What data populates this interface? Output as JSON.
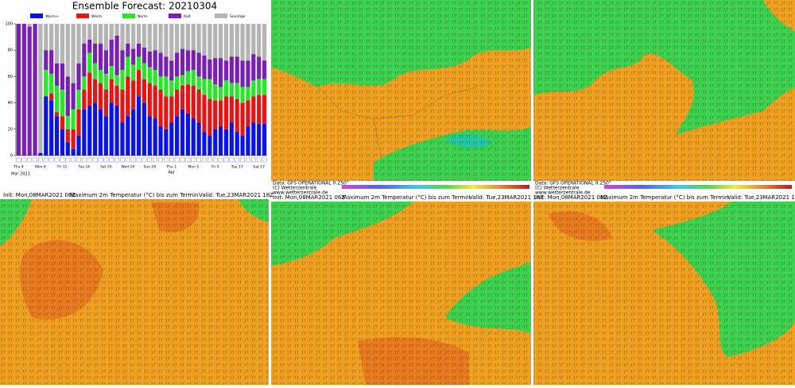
{
  "chart_data": {
    "type": "bar",
    "stacked": true,
    "title": "Ensemble Forecast: 20210304",
    "categories": [
      "Thu 4",
      null,
      null,
      null,
      "Mon 8",
      null,
      null,
      null,
      "Fri 12",
      null,
      null,
      null,
      "Tue 16",
      null,
      null,
      null,
      "Sat 20",
      null,
      null,
      null,
      "Wed 24",
      null,
      null,
      null,
      "Sun 28",
      null,
      null,
      null,
      "Thu 1",
      null,
      null,
      null,
      "Mon 5",
      null,
      null,
      null,
      "Fri 9",
      null,
      null,
      null,
      "Tue 13",
      null,
      null,
      null,
      "Sat 17",
      null
    ],
    "month_labels": [
      "Mar 2021",
      "Apr"
    ],
    "series": [
      {
        "name": "Warm+",
        "color": "#0a14e6",
        "values": [
          0,
          0,
          0,
          0,
          2,
          45,
          42,
          30,
          20,
          10,
          5,
          15,
          35,
          38,
          40,
          35,
          30,
          40,
          38,
          25,
          30,
          35,
          45,
          40,
          30,
          28,
          22,
          20,
          25,
          30,
          35,
          32,
          28,
          25,
          18,
          15,
          20,
          22,
          20,
          25,
          18,
          15,
          22,
          25,
          24,
          24
        ]
      },
      {
        "name": "Warm",
        "color": "#e61414",
        "values": [
          0,
          0,
          0,
          0,
          0,
          0,
          5,
          3,
          10,
          10,
          15,
          20,
          15,
          25,
          18,
          20,
          20,
          18,
          15,
          25,
          30,
          22,
          20,
          18,
          25,
          25,
          28,
          25,
          20,
          20,
          18,
          22,
          25,
          25,
          28,
          28,
          22,
          20,
          25,
          20,
          25,
          25,
          20,
          20,
          22,
          22
        ]
      },
      {
        "name": "Norm",
        "color": "#28e628",
        "values": [
          0,
          0,
          0,
          0,
          0,
          20,
          15,
          20,
          20,
          10,
          15,
          15,
          10,
          15,
          12,
          10,
          12,
          10,
          8,
          15,
          15,
          12,
          10,
          12,
          12,
          12,
          10,
          15,
          12,
          10,
          8,
          10,
          12,
          10,
          12,
          15,
          12,
          10,
          12,
          10,
          12,
          12,
          10,
          12,
          12,
          12
        ]
      },
      {
        "name": "Kalt",
        "color": "#7a1fb4",
        "values": [
          100,
          100,
          98,
          100,
          0,
          15,
          18,
          17,
          20,
          30,
          20,
          20,
          25,
          10,
          15,
          20,
          18,
          20,
          30,
          15,
          10,
          12,
          10,
          12,
          12,
          15,
          18,
          15,
          15,
          18,
          20,
          16,
          15,
          18,
          18,
          15,
          20,
          22,
          15,
          20,
          20,
          20,
          20,
          20,
          17,
          14
        ]
      },
      {
        "name": "Sonstige",
        "color": "#b4b4b4",
        "values": [
          0,
          0,
          2,
          0,
          98,
          20,
          20,
          30,
          30,
          40,
          45,
          30,
          15,
          12,
          15,
          15,
          20,
          12,
          9,
          20,
          15,
          19,
          15,
          18,
          21,
          20,
          22,
          25,
          28,
          22,
          19,
          20,
          20,
          22,
          24,
          27,
          26,
          26,
          28,
          25,
          25,
          28,
          28,
          23,
          25,
          28
        ]
      }
    ],
    "ylim": [
      0,
      100
    ],
    "yticks": [
      0,
      20,
      40,
      60,
      80,
      100
    ],
    "grid": false
  },
  "maps": {
    "header": {
      "init": "Init: Mon,08MAR2021 06Z",
      "title": "Maximum 2m Temperatur (°C) bis zum Termin",
      "valid": "Valid: Tue,23MAR2021 18Z"
    },
    "footer": {
      "source": "Data: GFS OPERATIONAL 0.250°",
      "copyright": "(C) Wetterzentrale",
      "url": "www.wetterzentrale.de"
    }
  }
}
